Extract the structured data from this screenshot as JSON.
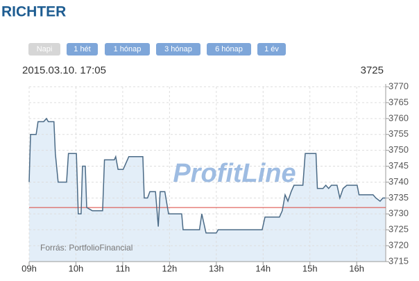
{
  "header": {
    "title": "RICHTER",
    "buttons": [
      "Napi",
      "1 hét",
      "1 hónap",
      "3 hónap",
      "6 hónap",
      "1 év"
    ],
    "timestamp": "2015.03.10. 17:05",
    "price": 3725
  },
  "chart_data": {
    "type": "line",
    "watermark": "ProfitLine",
    "source": "Forrás: PortfolioFinancial",
    "x": [
      9.0,
      9.03,
      9.15,
      9.19,
      9.31,
      9.37,
      9.41,
      9.53,
      9.56,
      9.62,
      9.8,
      9.84,
      10.01,
      10.05,
      10.11,
      10.14,
      10.2,
      10.23,
      10.35,
      10.57,
      10.61,
      10.82,
      10.85,
      10.9,
      11.01,
      11.04,
      11.13,
      11.43,
      11.46,
      11.53,
      11.58,
      11.7,
      11.76,
      11.8,
      11.9,
      11.98,
      12.26,
      12.29,
      12.64,
      12.69,
      12.78,
      13.0,
      13.04,
      13.98,
      14.04,
      14.35,
      14.41,
      14.47,
      14.53,
      14.6,
      14.66,
      14.85,
      14.9,
      15.13,
      15.16,
      15.28,
      15.34,
      15.4,
      15.46,
      15.58,
      15.64,
      15.71,
      15.79,
      16.01,
      16.05,
      16.35,
      16.41,
      16.5,
      16.56,
      16.61
    ],
    "series": [
      {
        "color": "#4a6a86",
        "fill": "#e3eef8",
        "values": [
          3740,
          3755,
          3755,
          3759,
          3759,
          3760,
          3759,
          3759,
          3749,
          3740,
          3740,
          3749,
          3749,
          3730,
          3730,
          3745,
          3745,
          3732,
          3731,
          3731,
          3747,
          3747,
          3748,
          3744,
          3744,
          3745,
          3748,
          3748,
          3735,
          3735,
          3737,
          3737,
          3726,
          3737,
          3737,
          3730,
          3730,
          3725,
          3725,
          3730,
          3724,
          3724,
          3725,
          3725,
          3729,
          3729,
          3731,
          3736,
          3734,
          3737,
          3739,
          3739,
          3749,
          3749,
          3738,
          3738,
          3739,
          3738,
          3739,
          3739,
          3735,
          3738,
          3739,
          3739,
          3736,
          3736,
          3735,
          3734,
          3735,
          3735
        ]
      }
    ],
    "reference_line": {
      "value": 3732,
      "color": "#d9413a"
    },
    "xlim": [
      9,
      16.62
    ],
    "xticks": [
      {
        "value": 9,
        "label": "09h"
      },
      {
        "value": 10,
        "label": "10h"
      },
      {
        "value": 11,
        "label": "11h"
      },
      {
        "value": 12,
        "label": "12h"
      },
      {
        "value": 13,
        "label": "13h"
      },
      {
        "value": 14,
        "label": "14h"
      },
      {
        "value": 15,
        "label": "15h"
      },
      {
        "value": 16,
        "label": "16h"
      }
    ],
    "ylim": [
      3715,
      3770
    ],
    "yticks": [
      3715,
      3720,
      3725,
      3730,
      3735,
      3740,
      3745,
      3750,
      3755,
      3760,
      3765,
      3770
    ],
    "grid": true
  }
}
